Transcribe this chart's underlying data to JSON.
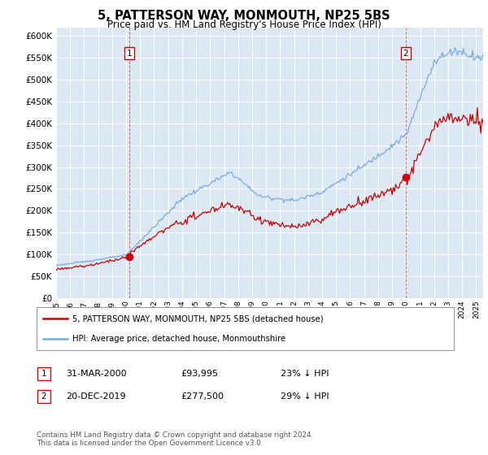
{
  "title": "5, PATTERSON WAY, MONMOUTH, NP25 5BS",
  "subtitle": "Price paid vs. HM Land Registry's House Price Index (HPI)",
  "plot_bg_color": "#dce9f5",
  "red_line_color": "#cc0000",
  "blue_line_color": "#7aaadd",
  "yticks": [
    0,
    50000,
    100000,
    150000,
    200000,
    250000,
    300000,
    350000,
    400000,
    450000,
    500000,
    550000,
    600000
  ],
  "ytick_labels": [
    "£0",
    "£50K",
    "£100K",
    "£150K",
    "£200K",
    "£250K",
    "£300K",
    "£350K",
    "£400K",
    "£450K",
    "£500K",
    "£550K",
    "£600K"
  ],
  "xmin": 1995.0,
  "xmax": 2025.5,
  "ymin": 0,
  "ymax": 620000,
  "sale1_x": 2000.25,
  "sale1_y": 93995,
  "sale1_label": "1",
  "sale2_x": 2019.97,
  "sale2_y": 277500,
  "sale2_label": "2",
  "legend_line1": "5, PATTERSON WAY, MONMOUTH, NP25 5BS (detached house)",
  "legend_line2": "HPI: Average price, detached house, Monmouthshire",
  "table_row1_num": "1",
  "table_row1_date": "31-MAR-2000",
  "table_row1_price": "£93,995",
  "table_row1_hpi": "23% ↓ HPI",
  "table_row2_num": "2",
  "table_row2_date": "20-DEC-2019",
  "table_row2_price": "£277,500",
  "table_row2_hpi": "29% ↓ HPI",
  "footer": "Contains HM Land Registry data © Crown copyright and database right 2024.\nThis data is licensed under the Open Government Licence v3.0.",
  "dashed_line1_x": 2000.25,
  "dashed_line2_x": 2019.97
}
